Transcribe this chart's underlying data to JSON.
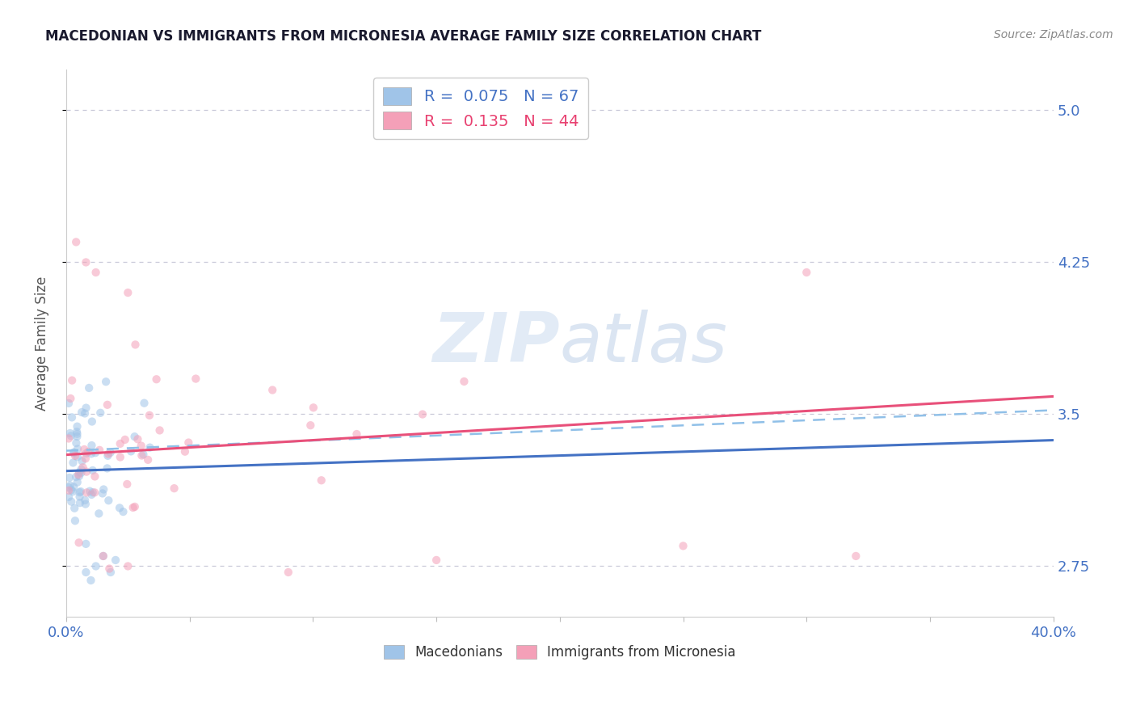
{
  "title": "MACEDONIAN VS IMMIGRANTS FROM MICRONESIA AVERAGE FAMILY SIZE CORRELATION CHART",
  "source": "Source: ZipAtlas.com",
  "ylabel": "Average Family Size",
  "xlim": [
    0.0,
    0.4
  ],
  "ylim": [
    2.5,
    5.2
  ],
  "yticks": [
    2.75,
    3.5,
    4.25,
    5.0
  ],
  "xticks": [
    0.0,
    0.05,
    0.1,
    0.15,
    0.2,
    0.25,
    0.3,
    0.35,
    0.4
  ],
  "watermark_zip": "ZIP",
  "watermark_atlas": "atlas",
  "series": [
    {
      "name": "Macedonians",
      "R": 0.075,
      "N": 67,
      "marker_color": "#a0c4e8",
      "line_color": "#4472c4",
      "dashed_color": "#90c0e8"
    },
    {
      "name": "Immigrants from Micronesia",
      "R": 0.135,
      "N": 44,
      "marker_color": "#f4a0b8",
      "line_color": "#e8507a",
      "dashed_color": "#f4a0b8"
    }
  ],
  "title_color": "#1a1a2e",
  "axis_label_color": "#4472c4",
  "tick_color": "#4472c4",
  "background_color": "#ffffff",
  "grid_color": "#c8c8d8",
  "legend_text_blue": "R =  0.075   N = 67",
  "legend_text_pink": "R =  0.135   N = 44"
}
